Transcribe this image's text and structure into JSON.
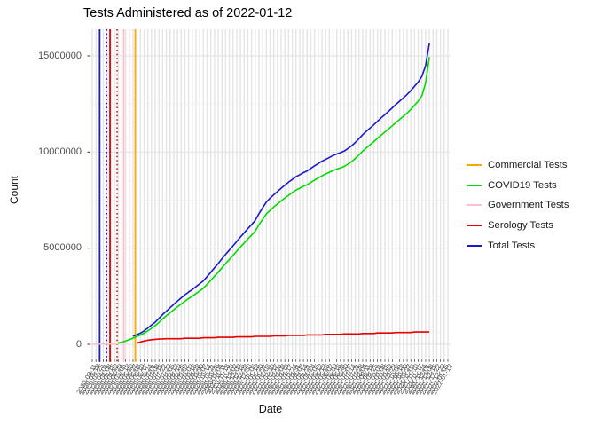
{
  "title": "Tests Administered as of 2022-01-12",
  "x_axis": {
    "title": "Date"
  },
  "y_axis": {
    "title": "Count",
    "tick_labels": [
      "0",
      "5000000",
      "10000000",
      "15000000"
    ],
    "tick_values": [
      0,
      5000000,
      10000000,
      15000000
    ]
  },
  "colors": {
    "grid_major": "#E4E4E4",
    "grid_minor": "#F1F1F1",
    "tick": "#333333",
    "axis_text": "#4d4d4d"
  },
  "chart_data": {
    "type": "line",
    "title": "Tests Administered as of 2022-01-12",
    "xlabel": "Date",
    "ylabel": "Count",
    "x_type": "categorical-dates",
    "grid": {
      "vertical_per_category": true,
      "minor_y_values": [
        2500000,
        7500000,
        12500000
      ]
    },
    "legend_position": "right",
    "ylim": [
      -785000,
      16380000
    ],
    "categories": [
      "2020-03-11",
      "2020-03-18",
      "2020-03-25",
      "2020-04-01",
      "2020-04-08",
      "2020-04-15",
      "2020-04-22",
      "2020-04-29",
      "2020-05-06",
      "2020-05-13",
      "2020-05-20",
      "2020-05-27",
      "2020-06-03",
      "2020-06-10",
      "2020-06-17",
      "2020-06-24",
      "2020-07-01",
      "2020-07-08",
      "2020-07-15",
      "2020-07-22",
      "2020-07-29",
      "2020-08-05",
      "2020-08-12",
      "2020-08-19",
      "2020-08-26",
      "2020-09-02",
      "2020-09-09",
      "2020-09-16",
      "2020-09-23",
      "2020-09-30",
      "2020-10-07",
      "2020-10-14",
      "2020-10-21",
      "2020-10-28",
      "2020-11-04",
      "2020-11-11",
      "2020-11-18",
      "2020-11-25",
      "2020-12-02",
      "2020-12-09",
      "2020-12-16",
      "2020-12-23",
      "2020-12-30",
      "2021-01-06",
      "2021-01-13",
      "2021-01-20",
      "2021-01-27",
      "2021-02-03",
      "2021-02-10",
      "2021-02-17",
      "2021-02-24",
      "2021-03-03",
      "2021-03-10",
      "2021-03-17",
      "2021-03-24",
      "2021-03-31",
      "2021-04-07",
      "2021-04-14",
      "2021-04-21",
      "2021-04-28",
      "2021-05-05",
      "2021-05-12",
      "2021-05-19",
      "2021-05-26",
      "2021-06-02",
      "2021-06-09",
      "2021-06-16",
      "2021-06-23",
      "2021-06-30",
      "2021-07-07",
      "2021-07-14",
      "2021-07-21",
      "2021-07-28",
      "2021-08-04",
      "2021-08-11",
      "2021-08-18",
      "2021-08-25",
      "2021-09-01",
      "2021-09-08",
      "2021-09-15",
      "2021-09-22",
      "2021-09-29",
      "2021-10-06",
      "2021-10-13",
      "2021-10-20",
      "2021-10-27",
      "2021-11-03",
      "2021-11-10",
      "2021-11-17",
      "2021-11-24",
      "2021-12-01",
      "2021-12-08",
      "2021-12-15",
      "2021-12-22",
      "2021-12-29",
      "2022-01-05",
      "2022-01-12"
    ],
    "series": [
      {
        "name": "Commercial Tests",
        "color": "#FFA500",
        "values": [
          null,
          null,
          null,
          null,
          15000,
          20000,
          30000,
          60000,
          120000,
          null,
          null,
          null,
          null,
          null,
          null,
          null,
          null,
          null,
          null,
          null,
          null,
          null,
          null,
          null,
          null,
          null,
          null,
          null,
          null,
          null,
          null,
          null,
          null,
          null,
          null,
          null,
          null,
          null,
          null,
          null,
          null,
          null,
          null,
          null,
          null,
          null,
          null,
          null,
          null,
          null,
          null,
          null,
          null,
          null,
          null,
          null,
          null,
          null,
          null,
          null,
          null,
          null,
          null,
          null,
          null,
          null,
          null,
          null,
          null,
          null,
          null,
          null,
          null,
          null,
          null,
          null,
          null,
          null,
          null,
          null,
          null,
          null,
          null,
          null,
          null,
          null,
          null,
          null,
          null,
          null,
          null,
          null,
          null,
          null,
          null,
          null,
          null
        ]
      },
      {
        "name": "COVID19 Tests",
        "color": "#00DB00",
        "values": [
          null,
          null,
          null,
          null,
          null,
          null,
          20000,
          60000,
          110000,
          170000,
          240000,
          320000,
          400000,
          480000,
          580000,
          700000,
          830000,
          970000,
          1140000,
          1320000,
          1480000,
          1640000,
          1800000,
          1950000,
          2100000,
          2240000,
          2380000,
          2500000,
          2640000,
          2780000,
          2920000,
          3120000,
          3330000,
          3540000,
          3750000,
          3980000,
          4200000,
          4410000,
          4620000,
          4840000,
          5060000,
          5270000,
          5480000,
          5670000,
          5890000,
          6220000,
          6500000,
          6780000,
          6970000,
          7140000,
          7300000,
          7460000,
          7610000,
          7750000,
          7890000,
          8020000,
          8120000,
          8220000,
          8300000,
          8420000,
          8540000,
          8650000,
          8760000,
          8860000,
          8950000,
          9040000,
          9110000,
          9180000,
          9250000,
          9370000,
          9500000,
          9670000,
          9860000,
          10050000,
          10220000,
          10380000,
          10540000,
          10710000,
          10880000,
          11040000,
          11200000,
          11370000,
          11540000,
          11700000,
          11860000,
          12030000,
          12220000,
          12430000,
          12650000,
          12940000,
          13600000,
          14950000,
          null,
          null,
          null,
          null,
          null
        ]
      },
      {
        "name": "Government Tests",
        "color": "#FFC0CB",
        "values": [
          10000,
          12000,
          15000,
          18000,
          20000,
          22000,
          25000,
          30000,
          null,
          null,
          null,
          null,
          null,
          null,
          null,
          null,
          null,
          null,
          null,
          null,
          null,
          null,
          null,
          null,
          null,
          null,
          null,
          null,
          null,
          null,
          null,
          null,
          null,
          null,
          null,
          null,
          null,
          null,
          null,
          null,
          null,
          null,
          null,
          null,
          null,
          null,
          null,
          null,
          null,
          null,
          null,
          null,
          null,
          null,
          null,
          null,
          null,
          null,
          null,
          null,
          null,
          null,
          null,
          null,
          null,
          null,
          null,
          null,
          null,
          null,
          null,
          null,
          null,
          null,
          null,
          null,
          null,
          null,
          null,
          null,
          null,
          null,
          null,
          null,
          null,
          null,
          null,
          null,
          null,
          null,
          null,
          null,
          null,
          null,
          null,
          null,
          null
        ]
      },
      {
        "name": "Serology Tests",
        "color": "#E60000",
        "values": [
          null,
          null,
          null,
          null,
          null,
          null,
          null,
          null,
          null,
          null,
          null,
          null,
          60000,
          120000,
          170000,
          210000,
          240000,
          260000,
          270000,
          280000,
          290000,
          290000,
          290000,
          290000,
          290000,
          315000,
          315000,
          315000,
          315000,
          315000,
          340000,
          340000,
          340000,
          340000,
          365000,
          365000,
          365000,
          365000,
          365000,
          390000,
          390000,
          390000,
          390000,
          390000,
          415000,
          415000,
          415000,
          415000,
          415000,
          440000,
          440000,
          440000,
          440000,
          465000,
          465000,
          465000,
          465000,
          465000,
          490000,
          490000,
          490000,
          490000,
          490000,
          515000,
          515000,
          515000,
          515000,
          515000,
          540000,
          540000,
          540000,
          540000,
          540000,
          565000,
          565000,
          565000,
          565000,
          590000,
          590000,
          590000,
          590000,
          590000,
          615000,
          615000,
          615000,
          615000,
          615000,
          640000,
          640000,
          640000,
          640000,
          640000,
          null,
          null,
          null,
          null,
          null
        ]
      },
      {
        "name": "Total Tests",
        "color": "#1A1ACC",
        "values": [
          null,
          null,
          null,
          null,
          null,
          null,
          null,
          null,
          null,
          null,
          null,
          430000,
          500000,
          580000,
          700000,
          850000,
          1000000,
          1150000,
          1350000,
          1550000,
          1720000,
          1900000,
          2080000,
          2250000,
          2420000,
          2570000,
          2720000,
          2850000,
          3000000,
          3150000,
          3300000,
          3520000,
          3750000,
          3980000,
          4200000,
          4450000,
          4680000,
          4900000,
          5120000,
          5350000,
          5580000,
          5800000,
          6020000,
          6220000,
          6450000,
          6800000,
          7100000,
          7400000,
          7600000,
          7780000,
          7950000,
          8120000,
          8280000,
          8430000,
          8580000,
          8720000,
          8820000,
          8930000,
          9020000,
          9150000,
          9280000,
          9400000,
          9520000,
          9620000,
          9720000,
          9820000,
          9900000,
          9970000,
          10050000,
          10180000,
          10320000,
          10500000,
          10700000,
          10900000,
          11080000,
          11250000,
          11420000,
          11600000,
          11780000,
          11950000,
          12120000,
          12300000,
          12480000,
          12650000,
          12820000,
          13000000,
          13200000,
          13420000,
          13650000,
          13950000,
          14500000,
          15650000,
          null,
          null,
          null,
          null,
          null
        ]
      }
    ],
    "vlines": [
      {
        "series": "Total Tests",
        "color": "#1A1ACC",
        "style": "solid",
        "category_index": 2
      },
      {
        "series": "Total Tests",
        "color": "#1A1ACC",
        "style": "dotted",
        "category_index": 3.9
      },
      {
        "series": "Serology Tests",
        "color": "#E60000",
        "style": "solid",
        "category_index": 4.8
      },
      {
        "series": "Serology Tests",
        "color": "#E60000",
        "style": "dotted",
        "category_index": 6.7
      },
      {
        "series": "Government Tests",
        "color": "#FFC0CB",
        "style": "solid",
        "category_index": 8.5
      },
      {
        "series": "Government Tests",
        "color": "#FFC0CB",
        "style": "dotted",
        "category_index": 10
      },
      {
        "series": "Commercial Tests",
        "color": "#FFAD00",
        "style": "solid",
        "category_index": 11.6
      }
    ]
  }
}
